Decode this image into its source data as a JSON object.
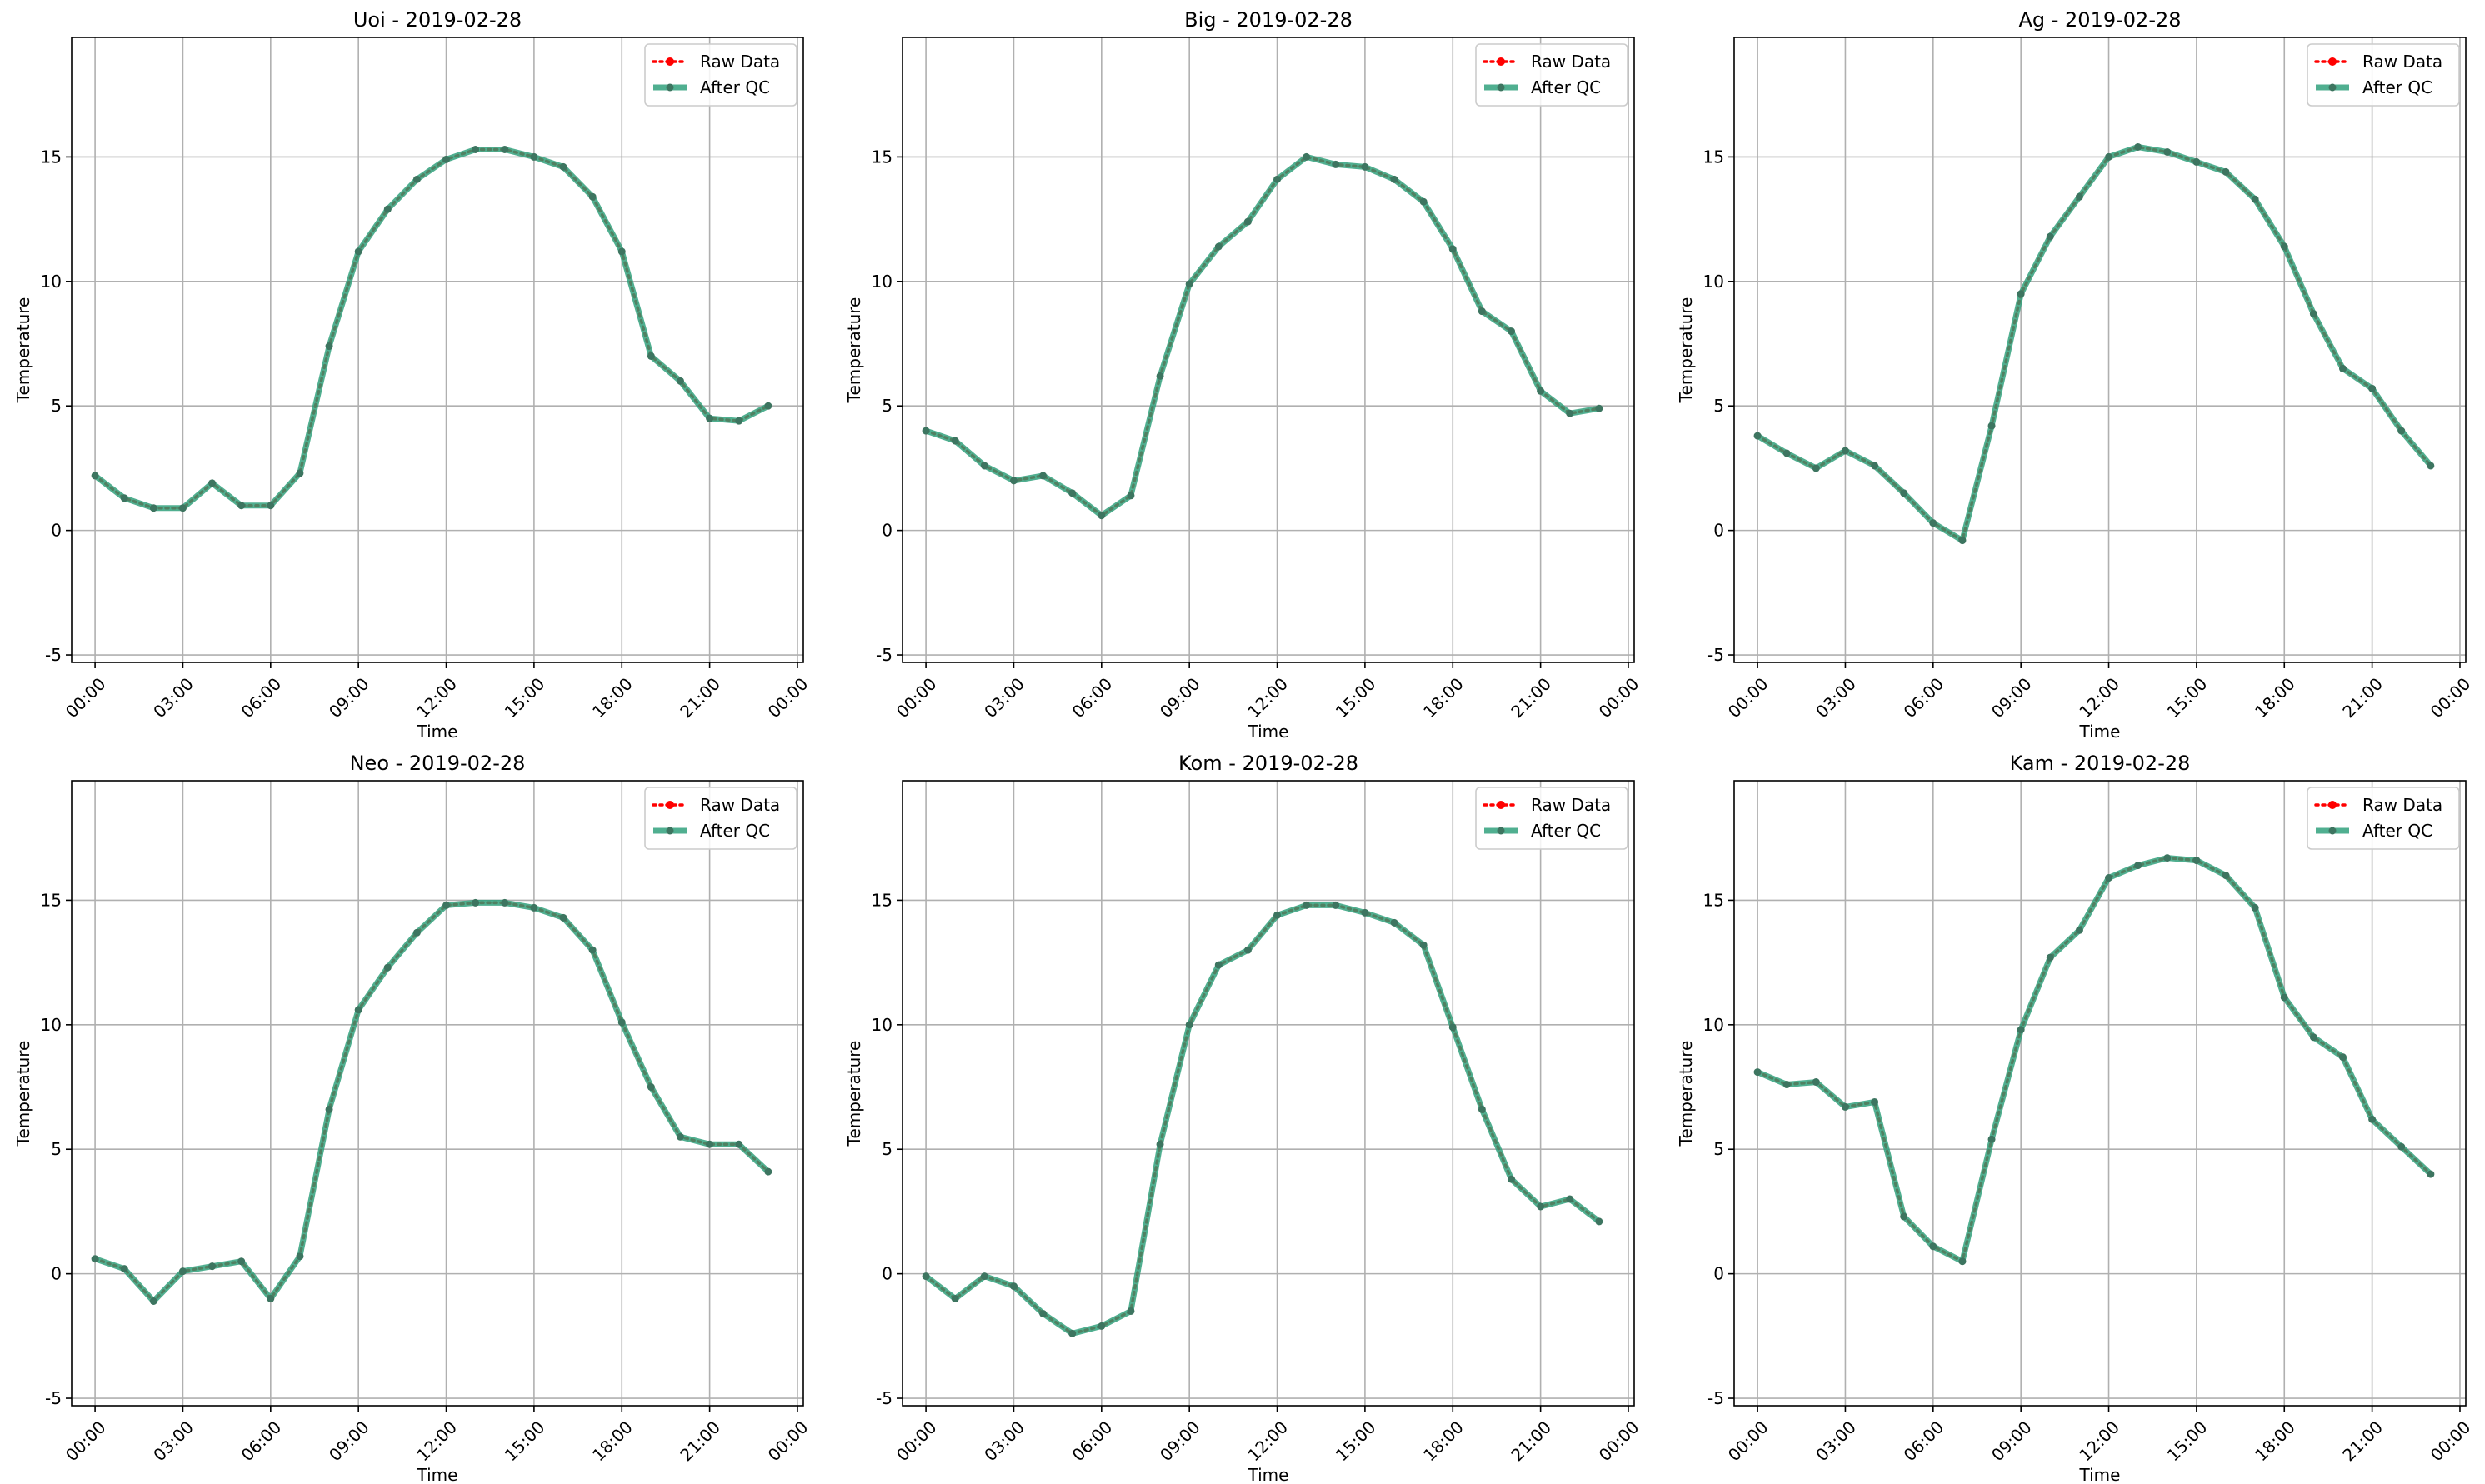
{
  "chart_data": [
    {
      "type": "line",
      "title": "Uoi - 2019-02-28",
      "xlabel": "Time",
      "ylabel": "Temperature",
      "ylim": [
        -5.3,
        19.8
      ],
      "yticks": [
        -5,
        0,
        5,
        10,
        15
      ],
      "xlim": [
        -0.8,
        24.2
      ],
      "xtick_hours": [
        0,
        3,
        6,
        9,
        12,
        15,
        18,
        21,
        24
      ],
      "xtick_labels": [
        "00:00",
        "03:00",
        "06:00",
        "09:00",
        "12:00",
        "15:00",
        "18:00",
        "21:00",
        "00:00"
      ],
      "grid": true,
      "legend_position": "top-right",
      "x_hours": [
        0,
        1,
        2,
        3,
        4,
        5,
        6,
        7,
        8,
        9,
        10,
        11,
        12,
        13,
        14,
        15,
        16,
        17,
        18,
        19,
        20,
        21,
        22,
        23
      ],
      "series": [
        {
          "name": "Raw Data",
          "color": "#ff0000",
          "values": [
            2.2,
            1.3,
            0.9,
            0.9,
            1.9,
            1.0,
            1.0,
            2.3,
            7.4,
            11.2,
            12.9,
            14.1,
            14.9,
            15.3,
            15.3,
            15.0,
            14.6,
            13.4,
            11.2,
            7.0,
            6.0,
            4.5,
            4.4,
            5.0
          ]
        },
        {
          "name": "After QC",
          "color": "#2a9d78",
          "values": [
            2.2,
            1.3,
            0.9,
            0.9,
            1.9,
            1.0,
            1.0,
            2.3,
            7.4,
            11.2,
            12.9,
            14.1,
            14.9,
            15.3,
            15.3,
            15.0,
            14.6,
            13.4,
            11.2,
            7.0,
            6.0,
            4.5,
            4.4,
            5.0
          ]
        }
      ]
    },
    {
      "type": "line",
      "title": "Big - 2019-02-28",
      "xlabel": "Time",
      "ylabel": "Temperature",
      "ylim": [
        -5.3,
        19.8
      ],
      "yticks": [
        -5,
        0,
        5,
        10,
        15
      ],
      "xlim": [
        -0.8,
        24.2
      ],
      "xtick_hours": [
        0,
        3,
        6,
        9,
        12,
        15,
        18,
        21,
        24
      ],
      "xtick_labels": [
        "00:00",
        "03:00",
        "06:00",
        "09:00",
        "12:00",
        "15:00",
        "18:00",
        "21:00",
        "00:00"
      ],
      "grid": true,
      "legend_position": "top-right",
      "x_hours": [
        0,
        1,
        2,
        3,
        4,
        5,
        6,
        7,
        8,
        9,
        10,
        11,
        12,
        13,
        14,
        15,
        16,
        17,
        18,
        19,
        20,
        21,
        22,
        23
      ],
      "series": [
        {
          "name": "Raw Data",
          "color": "#ff0000",
          "values": [
            4.0,
            3.6,
            2.6,
            2.0,
            2.2,
            1.5,
            0.6,
            1.4,
            6.2,
            9.9,
            11.4,
            12.4,
            14.1,
            15.0,
            14.7,
            14.6,
            14.1,
            13.2,
            11.3,
            8.8,
            8.0,
            5.6,
            4.7,
            4.9
          ]
        },
        {
          "name": "After QC",
          "color": "#2a9d78",
          "values": [
            4.0,
            3.6,
            2.6,
            2.0,
            2.2,
            1.5,
            0.6,
            1.4,
            6.2,
            9.9,
            11.4,
            12.4,
            14.1,
            15.0,
            14.7,
            14.6,
            14.1,
            13.2,
            11.3,
            8.8,
            8.0,
            5.6,
            4.7,
            4.9
          ]
        }
      ]
    },
    {
      "type": "line",
      "title": "Ag - 2019-02-28",
      "xlabel": "Time",
      "ylabel": "Temperature",
      "ylim": [
        -5.3,
        19.8
      ],
      "yticks": [
        -5,
        0,
        5,
        10,
        15
      ],
      "xlim": [
        -0.8,
        24.2
      ],
      "xtick_hours": [
        0,
        3,
        6,
        9,
        12,
        15,
        18,
        21,
        24
      ],
      "xtick_labels": [
        "00:00",
        "03:00",
        "06:00",
        "09:00",
        "12:00",
        "15:00",
        "18:00",
        "21:00",
        "00:00"
      ],
      "grid": true,
      "legend_position": "top-right",
      "x_hours": [
        0,
        1,
        2,
        3,
        4,
        5,
        6,
        7,
        8,
        9,
        10,
        11,
        12,
        13,
        14,
        15,
        16,
        17,
        18,
        19,
        20,
        21,
        22,
        23
      ],
      "series": [
        {
          "name": "Raw Data",
          "color": "#ff0000",
          "values": [
            3.8,
            3.1,
            2.5,
            3.2,
            2.6,
            1.5,
            0.3,
            -0.4,
            4.2,
            9.5,
            11.8,
            13.4,
            15.0,
            15.4,
            15.2,
            14.8,
            14.4,
            13.3,
            11.4,
            8.7,
            6.5,
            5.7,
            4.0,
            2.6
          ]
        },
        {
          "name": "After QC",
          "color": "#2a9d78",
          "values": [
            3.8,
            3.1,
            2.5,
            3.2,
            2.6,
            1.5,
            0.3,
            -0.4,
            4.2,
            9.5,
            11.8,
            13.4,
            15.0,
            15.4,
            15.2,
            14.8,
            14.4,
            13.3,
            11.4,
            8.7,
            6.5,
            5.7,
            4.0,
            2.6
          ]
        }
      ]
    },
    {
      "type": "line",
      "title": "Neo - 2019-02-28",
      "xlabel": "Time",
      "ylabel": "Temperature",
      "ylim": [
        -5.3,
        19.8
      ],
      "yticks": [
        -5,
        0,
        5,
        10,
        15
      ],
      "xlim": [
        -0.8,
        24.2
      ],
      "xtick_hours": [
        0,
        3,
        6,
        9,
        12,
        15,
        18,
        21,
        24
      ],
      "xtick_labels": [
        "00:00",
        "03:00",
        "06:00",
        "09:00",
        "12:00",
        "15:00",
        "18:00",
        "21:00",
        "00:00"
      ],
      "grid": true,
      "legend_position": "top-right",
      "x_hours": [
        0,
        1,
        2,
        3,
        4,
        5,
        6,
        7,
        8,
        9,
        10,
        11,
        12,
        13,
        14,
        15,
        16,
        17,
        18,
        19,
        20,
        21,
        22,
        23
      ],
      "series": [
        {
          "name": "Raw Data",
          "color": "#ff0000",
          "values": [
            0.6,
            0.2,
            -1.1,
            0.1,
            0.3,
            0.5,
            -1.0,
            0.7,
            6.6,
            10.6,
            12.3,
            13.7,
            14.8,
            14.9,
            14.9,
            14.7,
            14.3,
            13.0,
            10.1,
            7.5,
            5.5,
            5.2,
            5.2,
            4.1
          ]
        },
        {
          "name": "After QC",
          "color": "#2a9d78",
          "values": [
            0.6,
            0.2,
            -1.1,
            0.1,
            0.3,
            0.5,
            -1.0,
            0.7,
            6.6,
            10.6,
            12.3,
            13.7,
            14.8,
            14.9,
            14.9,
            14.7,
            14.3,
            13.0,
            10.1,
            7.5,
            5.5,
            5.2,
            5.2,
            4.1
          ]
        }
      ]
    },
    {
      "type": "line",
      "title": "Kom - 2019-02-28",
      "xlabel": "Time",
      "ylabel": "Temperature",
      "ylim": [
        -5.3,
        19.8
      ],
      "yticks": [
        -5,
        0,
        5,
        10,
        15
      ],
      "xlim": [
        -0.8,
        24.2
      ],
      "xtick_hours": [
        0,
        3,
        6,
        9,
        12,
        15,
        18,
        21,
        24
      ],
      "xtick_labels": [
        "00:00",
        "03:00",
        "06:00",
        "09:00",
        "12:00",
        "15:00",
        "18:00",
        "21:00",
        "00:00"
      ],
      "grid": true,
      "legend_position": "top-right",
      "x_hours": [
        0,
        1,
        2,
        3,
        4,
        5,
        6,
        7,
        8,
        9,
        10,
        11,
        12,
        13,
        14,
        15,
        16,
        17,
        18,
        19,
        20,
        21,
        22,
        23
      ],
      "series": [
        {
          "name": "Raw Data",
          "color": "#ff0000",
          "values": [
            -0.1,
            -1.0,
            -0.1,
            -0.5,
            -1.6,
            -2.4,
            -2.1,
            -1.5,
            5.2,
            10.0,
            12.4,
            13.0,
            14.4,
            14.8,
            14.8,
            14.5,
            14.1,
            13.2,
            9.9,
            6.6,
            3.8,
            2.7,
            3.0,
            2.1
          ]
        },
        {
          "name": "After QC",
          "color": "#2a9d78",
          "values": [
            -0.1,
            -1.0,
            -0.1,
            -0.5,
            -1.6,
            -2.4,
            -2.1,
            -1.5,
            5.2,
            10.0,
            12.4,
            13.0,
            14.4,
            14.8,
            14.8,
            14.5,
            14.1,
            13.2,
            9.9,
            6.6,
            3.8,
            2.7,
            3.0,
            2.1
          ]
        }
      ]
    },
    {
      "type": "line",
      "title": "Kam - 2019-02-28",
      "xlabel": "Time",
      "ylabel": "Temperature",
      "ylim": [
        -5.3,
        19.8
      ],
      "yticks": [
        -5,
        0,
        5,
        10,
        15
      ],
      "xlim": [
        -0.8,
        24.2
      ],
      "xtick_hours": [
        0,
        3,
        6,
        9,
        12,
        15,
        18,
        21,
        24
      ],
      "xtick_labels": [
        "00:00",
        "03:00",
        "06:00",
        "09:00",
        "12:00",
        "15:00",
        "18:00",
        "21:00",
        "00:00"
      ],
      "grid": true,
      "legend_position": "top-right",
      "x_hours": [
        0,
        1,
        2,
        3,
        4,
        5,
        6,
        7,
        8,
        9,
        10,
        11,
        12,
        13,
        14,
        15,
        16,
        17,
        18,
        19,
        20,
        21,
        22,
        23
      ],
      "series": [
        {
          "name": "Raw Data",
          "color": "#ff0000",
          "values": [
            8.1,
            7.6,
            7.7,
            6.7,
            6.9,
            2.3,
            1.1,
            0.5,
            5.4,
            9.8,
            12.7,
            13.8,
            15.9,
            16.4,
            16.7,
            16.6,
            16.0,
            14.7,
            11.1,
            9.5,
            8.7,
            6.2,
            5.1,
            4.0
          ]
        },
        {
          "name": "After QC",
          "color": "#2a9d78",
          "values": [
            8.1,
            7.6,
            7.7,
            6.7,
            6.9,
            2.3,
            1.1,
            0.5,
            5.4,
            9.8,
            12.7,
            13.8,
            15.9,
            16.4,
            16.7,
            16.6,
            16.0,
            14.7,
            11.1,
            9.5,
            8.7,
            6.2,
            5.1,
            4.0
          ]
        }
      ]
    }
  ]
}
